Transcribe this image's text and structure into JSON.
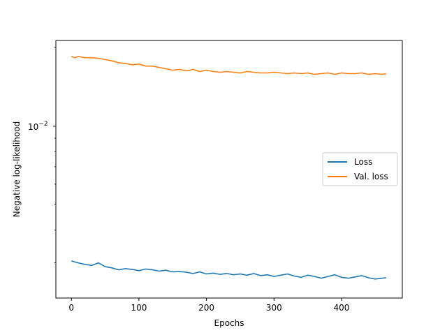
{
  "chart_data": {
    "type": "line",
    "xlabel": "Epochs",
    "ylabel": "Negative log-likelihood",
    "yscale": "log",
    "xlim": [
      -23,
      490
    ],
    "ylim": [
      0.0022,
      0.0213
    ],
    "x_ticks": [
      0,
      100,
      200,
      300,
      400
    ],
    "x_tick_labels": [
      "0",
      "100",
      "200",
      "300",
      "400"
    ],
    "y_major_ticks": [
      0.01
    ],
    "y_tick_labels": [
      {
        "base": "10",
        "exp": "−2"
      }
    ],
    "legend": {
      "position": "center-right",
      "entries": [
        "Loss",
        "Val. loss"
      ]
    },
    "grid": false,
    "series": [
      {
        "name": "Loss",
        "color": "#1f77b4",
        "x": [
          0,
          10,
          20,
          30,
          40,
          50,
          60,
          70,
          80,
          90,
          100,
          110,
          120,
          130,
          140,
          150,
          160,
          170,
          180,
          190,
          200,
          210,
          220,
          230,
          240,
          250,
          260,
          270,
          280,
          290,
          300,
          310,
          320,
          330,
          340,
          350,
          360,
          370,
          380,
          390,
          400,
          410,
          420,
          430,
          440,
          450,
          460,
          466
        ],
        "values": [
          0.00305,
          0.003,
          0.00296,
          0.00293,
          0.003,
          0.0029,
          0.00287,
          0.00282,
          0.00285,
          0.00283,
          0.0028,
          0.00284,
          0.00282,
          0.00279,
          0.00281,
          0.00277,
          0.00278,
          0.00276,
          0.00273,
          0.00277,
          0.00272,
          0.00274,
          0.00271,
          0.00273,
          0.0027,
          0.00272,
          0.00269,
          0.00273,
          0.00268,
          0.0027,
          0.00266,
          0.00269,
          0.00272,
          0.00267,
          0.00264,
          0.00269,
          0.00266,
          0.00262,
          0.00266,
          0.0027,
          0.00264,
          0.00262,
          0.00265,
          0.00268,
          0.00263,
          0.0026,
          0.00262,
          0.00263
        ]
      },
      {
        "name": "Val. loss",
        "color": "#ff7f0e",
        "x": [
          0,
          5,
          10,
          20,
          30,
          40,
          50,
          60,
          70,
          80,
          90,
          100,
          110,
          120,
          130,
          140,
          150,
          160,
          170,
          180,
          190,
          200,
          210,
          220,
          230,
          240,
          250,
          260,
          270,
          280,
          290,
          300,
          310,
          320,
          330,
          340,
          350,
          360,
          370,
          380,
          390,
          400,
          410,
          420,
          430,
          440,
          450,
          460,
          466
        ],
        "values": [
          0.0185,
          0.0183,
          0.0185,
          0.0183,
          0.0183,
          0.0182,
          0.018,
          0.0178,
          0.0175,
          0.0174,
          0.0172,
          0.0173,
          0.017,
          0.017,
          0.0168,
          0.0166,
          0.0164,
          0.0165,
          0.0163,
          0.0165,
          0.0162,
          0.0164,
          0.0162,
          0.0161,
          0.0162,
          0.0161,
          0.016,
          0.0162,
          0.0161,
          0.016,
          0.016,
          0.0161,
          0.016,
          0.0159,
          0.016,
          0.0159,
          0.016,
          0.0158,
          0.0159,
          0.016,
          0.0158,
          0.016,
          0.0159,
          0.0159,
          0.016,
          0.0158,
          0.0159,
          0.0158,
          0.0159
        ]
      }
    ]
  }
}
